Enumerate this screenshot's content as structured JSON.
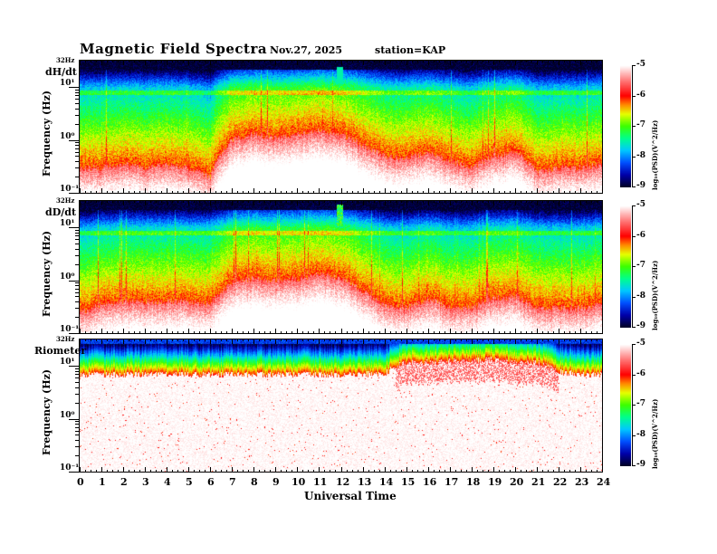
{
  "header": {
    "title": "Magnetic  Field  Spectra",
    "date": "Nov.27, 2025",
    "station": "station=KAP"
  },
  "chart_data": {
    "type": "heatmap",
    "xlabel": "Universal Time",
    "xlim": [
      0,
      24
    ],
    "x_ticks": [
      "0",
      "1",
      "2",
      "3",
      "4",
      "5",
      "6",
      "7",
      "8",
      "9",
      "10",
      "11",
      "12",
      "13",
      "14",
      "15",
      "16",
      "17",
      "18",
      "19",
      "20",
      "21",
      "22",
      "23",
      "24"
    ],
    "ylabel": "Frequency  (Hz)",
    "ylim_hz": [
      0.1,
      32
    ],
    "y_scale": "log",
    "y_ticks": [
      "10¹",
      "10⁰",
      "10⁻¹"
    ],
    "y_top_label": "32Hz",
    "colorbar": {
      "label": "log₁₀(PSD)(V^2/Hz)",
      "range": [
        -9,
        -5
      ],
      "ticks": [
        "-5",
        "-6",
        "-7",
        "-8",
        "-9"
      ]
    },
    "panels": [
      {
        "name": "dH/dt",
        "hours": [
          0,
          1,
          2,
          3,
          4,
          5,
          6,
          7,
          8,
          9,
          10,
          11,
          12,
          13,
          14,
          15,
          16,
          17,
          18,
          19,
          20,
          21,
          22,
          23,
          24
        ],
        "high_power_boundary_hz": [
          0.3,
          0.3,
          0.35,
          0.3,
          0.35,
          0.3,
          0.2,
          1.0,
          1.3,
          1.1,
          1.3,
          1.5,
          1.3,
          0.8,
          0.5,
          0.45,
          0.6,
          0.4,
          0.3,
          0.5,
          0.6,
          0.25,
          0.3,
          0.3,
          0.35
        ]
      },
      {
        "name": "dD/dt",
        "hours": [
          0,
          1,
          2,
          3,
          4,
          5,
          6,
          7,
          8,
          9,
          10,
          11,
          12,
          13,
          14,
          15,
          16,
          17,
          18,
          19,
          20,
          21,
          22,
          23,
          24
        ],
        "high_power_boundary_hz": [
          0.25,
          0.35,
          0.4,
          0.4,
          0.4,
          0.4,
          0.35,
          0.9,
          1.1,
          1.0,
          1.1,
          1.3,
          1.1,
          0.6,
          0.35,
          0.3,
          0.45,
          0.3,
          0.3,
          0.45,
          0.5,
          0.3,
          0.3,
          0.3,
          0.35
        ]
      },
      {
        "name": "Riometer",
        "hours": [
          0,
          1,
          2,
          3,
          4,
          5,
          6,
          7,
          8,
          9,
          10,
          11,
          12,
          13,
          14,
          15,
          16,
          17,
          18,
          19,
          20,
          21,
          22,
          23,
          24
        ],
        "high_power_boundary_hz": [
          7,
          7,
          7,
          7,
          7,
          7,
          7,
          7,
          7,
          7,
          7,
          7,
          7,
          7,
          7.5,
          12,
          12,
          13,
          13,
          14,
          12,
          12,
          8,
          7,
          7
        ]
      }
    ]
  }
}
